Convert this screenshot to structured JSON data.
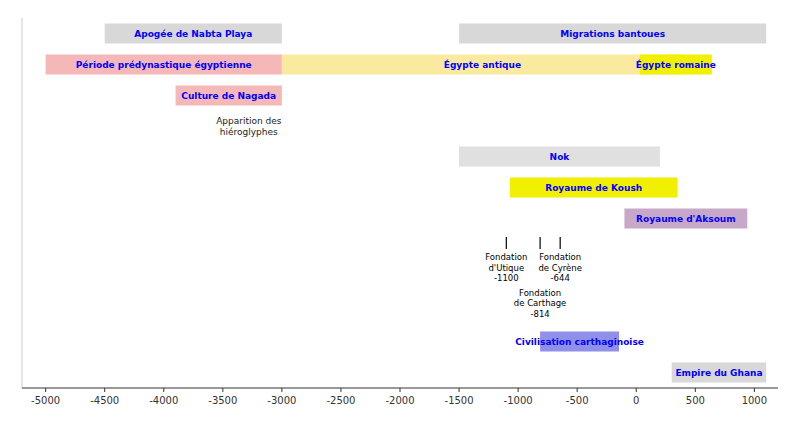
{
  "chart_data": {
    "type": "timeline",
    "xlim": [
      -5200,
      1200
    ],
    "xticks": [
      -5000,
      -4500,
      -4000,
      -3500,
      -3000,
      -2500,
      -2000,
      -1500,
      -1000,
      -500,
      0,
      500,
      1000
    ],
    "tick_labels": "x",
    "grid": false,
    "rows": [
      {
        "bars": [
          {
            "label": "Apogée de Nabta Playa",
            "start": -4500,
            "end": -3000,
            "color": "#d8d8d8",
            "text_color": "blue"
          },
          {
            "label": "Migrations bantoues",
            "start": -1500,
            "end": 1100,
            "color": "#d8d8d8",
            "text_color": "blue"
          }
        ]
      },
      {
        "bars": [
          {
            "label": "Période prédynastique égyptienne",
            "start": -5000,
            "end": -3000,
            "color": "#f4b8b8",
            "text_color": "blue"
          },
          {
            "label": "Égypte antique",
            "start": -3000,
            "end": 395,
            "color": "#faeaa0",
            "text_color": "blue"
          },
          {
            "label": "Égypte romaine",
            "start": 30,
            "end": 640,
            "color": "#f0f000",
            "text_color": "blue"
          }
        ]
      },
      {
        "bars": [
          {
            "label": "Culture de Nagada",
            "start": -3900,
            "end": -3000,
            "color": "#f4b8b8",
            "text_color": "blue"
          }
        ]
      },
      {
        "annotations": [
          {
            "text": "Apparition des\nhiéroglyphes",
            "x": -3280
          }
        ]
      },
      {
        "bars": [
          {
            "label": "Nok",
            "start": -1500,
            "end": 200,
            "color": "#e0e0e0",
            "text_color": "blue"
          }
        ]
      },
      {
        "bars": [
          {
            "label": "Royaume de Koush",
            "start": -1070,
            "end": 350,
            "color": "#f0f000",
            "text_color": "blue"
          }
        ]
      },
      {
        "bars": [
          {
            "label": "Royaume d'Aksoum",
            "start": -100,
            "end": 940,
            "color": "#c8a8c8",
            "text_color": "blue"
          }
        ]
      },
      {
        "events": [
          {
            "x": -1100,
            "label": "Fondation\nd'Utique\n-1100"
          },
          {
            "x": -814,
            "label": "Fondation\nde Carthage\n-814"
          },
          {
            "x": -644,
            "label": "Fondation\nde Cyrène\n-644"
          }
        ]
      },
      {
        "bars": [
          {
            "label": "Civilisation carthaginoise",
            "start": -814,
            "end": -146,
            "color": "#9090e8",
            "text_color": "blue"
          }
        ]
      },
      {
        "bars": [
          {
            "label": "Empire du Ghana",
            "start": 300,
            "end": 1100,
            "color": "#d8d8d8",
            "text_color": "blue"
          }
        ]
      }
    ]
  }
}
